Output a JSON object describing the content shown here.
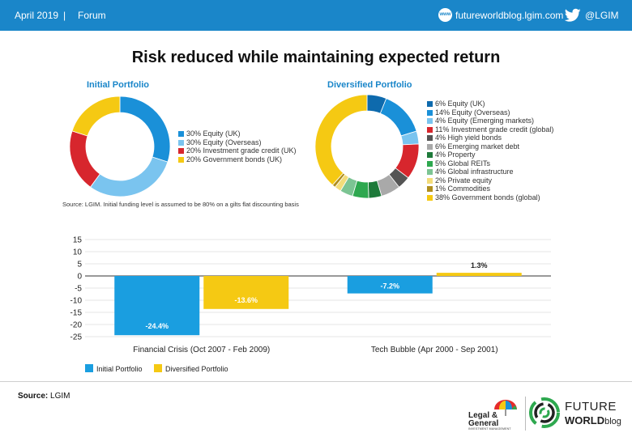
{
  "header": {
    "date": "April 2019",
    "separator": "|",
    "section": "Forum",
    "site": "futureworldblog.lgim.com",
    "handle": "@LGIM",
    "www_icon_text": "www",
    "color": "#1a86c9"
  },
  "title": "Risk reduced while maintaining expected return",
  "pies": [
    {
      "title": "Initial Portfolio",
      "slices": [
        {
          "label": "30% Equity (UK)",
          "value": 30,
          "color": "#1a90d8"
        },
        {
          "label": "30% Equity (Overseas)",
          "value": 30,
          "color": "#7ac4ef"
        },
        {
          "label": "20% Investment grade credit (UK)",
          "value": 20,
          "color": "#d7262d"
        },
        {
          "label": "20% Government bonds (UK)",
          "value": 20,
          "color": "#f5c913"
        }
      ]
    },
    {
      "title": "Diversified Portfolio",
      "slices": [
        {
          "label": "6% Equity (UK)",
          "value": 6,
          "color": "#0e6aad"
        },
        {
          "label": "14% Equity (Overseas)",
          "value": 14,
          "color": "#1a90d8"
        },
        {
          "label": "4% Equity (Emerging markets)",
          "value": 4,
          "color": "#7ac4ef"
        },
        {
          "label": "11% Investment grade credit (global)",
          "value": 11,
          "color": "#d7262d"
        },
        {
          "label": "4% High yield bonds",
          "value": 4,
          "color": "#555555"
        },
        {
          "label": "6% Emerging market debt",
          "value": 6,
          "color": "#a9a9a9"
        },
        {
          "label": "4% Property",
          "value": 4,
          "color": "#1e7a3a"
        },
        {
          "label": "5% Global REITs",
          "value": 5,
          "color": "#2ea84f"
        },
        {
          "label": "4% Global infrastructure",
          "value": 4,
          "color": "#7cc493"
        },
        {
          "label": "2% Private equity",
          "value": 2,
          "color": "#f3dc7a"
        },
        {
          "label": "1% Commodities",
          "value": 1,
          "color": "#b08f1f"
        },
        {
          "label": "38% Government bonds (global)",
          "value": 38,
          "color": "#f5c913"
        }
      ]
    }
  ],
  "pie_source": "Source: LGIM. Initial funding level is assumed to be 80% on a gilts flat discounting basis",
  "chart_data": {
    "type": "bar",
    "categories": [
      "Financial Crisis (Oct 2007 - Feb 2009)",
      "Tech Bubble (Apr 2000 - Sep 2001)"
    ],
    "series": [
      {
        "name": "Initial Portfolio",
        "values": [
          -24.4,
          -7.2
        ],
        "labels": [
          "-24.4%",
          "-7.2%"
        ],
        "color": "#1a9ee0"
      },
      {
        "name": "Diversified Portfolio",
        "values": [
          -13.6,
          1.3
        ],
        "labels": [
          "-13.6%",
          "1.3%"
        ],
        "color": "#f5c913"
      }
    ],
    "ylim": [
      -25,
      15
    ],
    "yticks": [
      15,
      10,
      5,
      0,
      -5,
      -10,
      -15,
      -20,
      -25
    ],
    "ytick_labels": [
      "15",
      "10",
      "5",
      "0",
      "-5",
      "-10",
      "-15",
      "-20",
      "-25"
    ],
    "grid": true,
    "legend_position": "bottom-left"
  },
  "footer": {
    "source_label": "Source:",
    "source_value": "LGIM",
    "lg_name_line1": "Legal &",
    "lg_name_line2": "General",
    "lg_sub": "INVESTMENT MANAGEMENT",
    "fw_line1": "FUTURE",
    "fw_line2": "WORLD",
    "fw_blog": "blog"
  }
}
